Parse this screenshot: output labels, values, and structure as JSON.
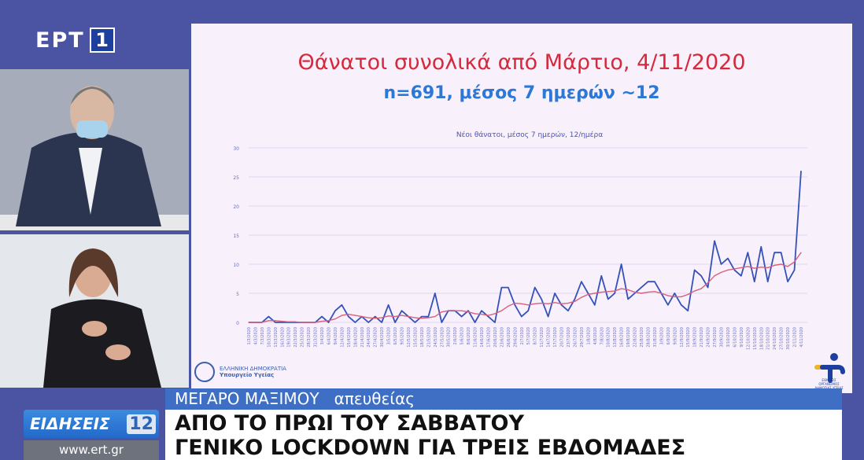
{
  "channel": {
    "logo_text": "ΕΡΤ",
    "logo_number": "1"
  },
  "slide": {
    "title": "Θάνατοι συνολικά από Μάρτιο, 4/11/2020",
    "subtitle": "n=691, μέσος 7 ημερών ~12",
    "org_line1": "ΕΛΛΗΝΙΚΗ ΔΗΜΟΚΡΑΤΙΑ",
    "org_line2": "Υπουργείο Υγείας",
    "eody_caption": "ΕΘΝΙΚΟΣ ΟΡΓΑΝΙΣΜΟΣ ΔΗΜΟΣΙΑΣ ΥΓΕΙΑΣ"
  },
  "chart_data": {
    "type": "line",
    "title": "Νέοι θάνατοι, μέσος 7 ημερών, 12/ημέρα",
    "ylim": [
      0,
      30
    ],
    "yticks": [
      "0",
      "5",
      "10",
      "15",
      "20",
      "25",
      "30"
    ],
    "grid": true,
    "colors": {
      "daily": "#3552b8",
      "average": "#d8607a"
    },
    "x": [
      "1/3/2020",
      "4/3/2020",
      "7/3/2020",
      "10/3/2020",
      "13/3/2020",
      "16/3/2020",
      "19/3/2020",
      "22/3/2020",
      "25/3/2020",
      "28/3/2020",
      "31/3/2020",
      "3/4/2020",
      "6/4/2020",
      "9/4/2020",
      "12/4/2020",
      "15/4/2020",
      "18/4/2020",
      "21/4/2020",
      "24/4/2020",
      "27/4/2020",
      "30/4/2020",
      "3/5/2020",
      "6/5/2020",
      "9/5/2020",
      "12/5/2020",
      "15/5/2020",
      "18/5/2020",
      "21/5/2020",
      "24/5/2020",
      "27/5/2020",
      "30/5/2020",
      "2/6/2020",
      "5/6/2020",
      "8/6/2020",
      "11/6/2020",
      "14/6/2020",
      "17/6/2020",
      "20/6/2020",
      "23/6/2020",
      "26/6/2020",
      "29/6/2020",
      "2/7/2020",
      "5/7/2020",
      "8/7/2020",
      "11/7/2020",
      "14/7/2020",
      "17/7/2020",
      "20/7/2020",
      "23/7/2020",
      "26/7/2020",
      "29/7/2020",
      "1/8/2020",
      "4/8/2020",
      "7/8/2020",
      "10/8/2020",
      "13/8/2020",
      "16/8/2020",
      "19/8/2020",
      "22/8/2020",
      "25/8/2020",
      "28/8/2020",
      "31/8/2020",
      "3/9/2020",
      "6/9/2020",
      "9/9/2020",
      "12/9/2020",
      "15/9/2020",
      "18/9/2020",
      "21/9/2020",
      "24/9/2020",
      "27/9/2020",
      "30/9/2020",
      "3/10/2020",
      "6/10/2020",
      "9/10/2020",
      "12/10/2020",
      "15/10/2020",
      "18/10/2020",
      "21/10/2020",
      "24/10/2020",
      "27/10/2020",
      "30/10/2020",
      "2/11/2020",
      "4/11/2020"
    ],
    "series": [
      {
        "values": [
          0,
          0,
          0,
          1,
          0,
          0,
          0,
          0,
          0,
          0,
          0,
          1,
          0,
          2,
          3,
          1,
          0,
          1,
          0,
          1,
          0,
          3,
          0,
          2,
          1,
          0,
          1,
          1,
          5,
          0,
          2,
          2,
          1,
          2,
          0,
          2,
          1,
          0,
          6,
          6,
          3,
          1,
          2,
          6,
          4,
          1,
          5,
          3,
          2,
          4,
          7,
          5,
          3,
          8,
          4,
          5,
          10,
          4,
          5,
          6,
          7,
          7,
          5,
          3,
          5,
          3,
          2,
          9,
          8,
          6,
          14,
          10,
          11,
          9,
          8,
          12,
          7,
          13,
          7,
          12,
          12,
          7,
          9,
          26
        ]
      },
      {
        "values": [
          0,
          0,
          0,
          0.3,
          0.3,
          0.2,
          0.1,
          0.1,
          0,
          0,
          0,
          0.2,
          0.3,
          0.6,
          1.2,
          1.4,
          1.2,
          1,
          0.8,
          0.7,
          0.8,
          1.1,
          1,
          1.2,
          1,
          0.8,
          0.7,
          0.8,
          1,
          1.8,
          2,
          2,
          2,
          1.8,
          1.5,
          1.4,
          1.2,
          1.5,
          2,
          2.8,
          3.3,
          3.2,
          3,
          3.2,
          3.3,
          3.2,
          3.4,
          3.2,
          3.3,
          3.6,
          4.3,
          4.8,
          5,
          5.2,
          5.3,
          5.4,
          5.8,
          5.6,
          5.2,
          5,
          5.2,
          5.3,
          5,
          4.6,
          4.4,
          4.4,
          4.8,
          5.4,
          5.8,
          6.8,
          8,
          8.6,
          9,
          9.2,
          9.4,
          9.6,
          9.3,
          9.5,
          9.4,
          9.8,
          10,
          9.6,
          10.4,
          12
        ]
      }
    ]
  },
  "ticker": {
    "location": "ΜΕΓΑΡΟ ΜΑΞΙΜΟΥ",
    "live": "απευθείας",
    "headline_line1": "ΑΠΟ ΤΟ ΠΡΩΙ ΤΟΥ ΣΑΒΒΑΤΟΥ",
    "headline_line2": "ΓΕΝΙΚΟ LOCKDOWN ΓΙΑ ΤΡΕΙΣ ΕΒΔΟΜΑΔΕΣ",
    "show_label": "ΕΙΔΗΣΕΙΣ",
    "show_time": "12",
    "website": "www.ert.gr"
  }
}
